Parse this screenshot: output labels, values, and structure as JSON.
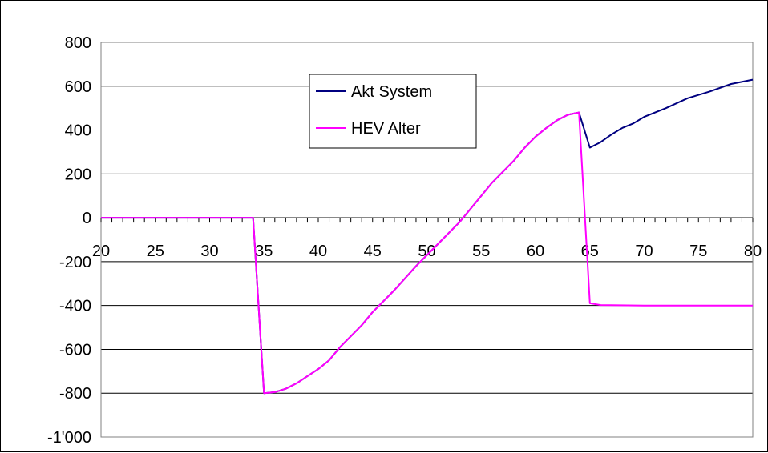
{
  "chart_data": {
    "type": "line",
    "title": "",
    "xlabel": "",
    "ylabel": "",
    "xlim": [
      20,
      80
    ],
    "ylim": [
      -1000,
      800
    ],
    "x_ticks": [
      20,
      25,
      30,
      35,
      40,
      45,
      50,
      55,
      60,
      65,
      70,
      75,
      80
    ],
    "x_tick_labels": [
      "20",
      "25",
      "30",
      "35",
      "40",
      "45",
      "50",
      "55",
      "60",
      "65",
      "70",
      "75",
      "80"
    ],
    "y_ticks": [
      800,
      600,
      400,
      200,
      0,
      -200,
      -400,
      -600,
      -800,
      -1000
    ],
    "y_tick_labels": [
      "800",
      "600",
      "400",
      "200",
      "0",
      "-200",
      "-400",
      "-600",
      "-800",
      "-1'000"
    ],
    "grid": "horizontal",
    "legend_position": "top-center",
    "series": [
      {
        "name": "Akt System",
        "color": "#000080",
        "points": [
          [
            20,
            0
          ],
          [
            34,
            0
          ],
          [
            35,
            -800
          ],
          [
            36,
            -795
          ],
          [
            37,
            -780
          ],
          [
            38,
            -755
          ],
          [
            40,
            -690
          ],
          [
            41,
            -650
          ],
          [
            42,
            -590
          ],
          [
            44,
            -490
          ],
          [
            45,
            -430
          ],
          [
            47,
            -330
          ],
          [
            49,
            -220
          ],
          [
            51,
            -120
          ],
          [
            52,
            -70
          ],
          [
            53,
            -20
          ],
          [
            55,
            100
          ],
          [
            56,
            160
          ],
          [
            57,
            210
          ],
          [
            58,
            260
          ],
          [
            59,
            320
          ],
          [
            60,
            370
          ],
          [
            61,
            410
          ],
          [
            62,
            445
          ],
          [
            63,
            470
          ],
          [
            64,
            480
          ],
          [
            65,
            320
          ],
          [
            66,
            345
          ],
          [
            67,
            380
          ],
          [
            68,
            410
          ],
          [
            69,
            430
          ],
          [
            70,
            460
          ],
          [
            72,
            500
          ],
          [
            74,
            545
          ],
          [
            76,
            575
          ],
          [
            78,
            610
          ],
          [
            80,
            630
          ]
        ]
      },
      {
        "name": "HEV Alter",
        "color": "#ff00ff",
        "points": [
          [
            20,
            0
          ],
          [
            34,
            0
          ],
          [
            35,
            -800
          ],
          [
            36,
            -795
          ],
          [
            37,
            -780
          ],
          [
            38,
            -755
          ],
          [
            40,
            -690
          ],
          [
            41,
            -650
          ],
          [
            42,
            -590
          ],
          [
            44,
            -490
          ],
          [
            45,
            -430
          ],
          [
            47,
            -330
          ],
          [
            49,
            -220
          ],
          [
            51,
            -120
          ],
          [
            52,
            -70
          ],
          [
            53,
            -20
          ],
          [
            55,
            100
          ],
          [
            56,
            160
          ],
          [
            57,
            210
          ],
          [
            58,
            260
          ],
          [
            59,
            320
          ],
          [
            60,
            370
          ],
          [
            61,
            410
          ],
          [
            62,
            445
          ],
          [
            63,
            470
          ],
          [
            64,
            480
          ],
          [
            65,
            -390
          ],
          [
            66,
            -398
          ],
          [
            70,
            -400
          ],
          [
            75,
            -400
          ],
          [
            80,
            -400
          ]
        ]
      }
    ]
  }
}
